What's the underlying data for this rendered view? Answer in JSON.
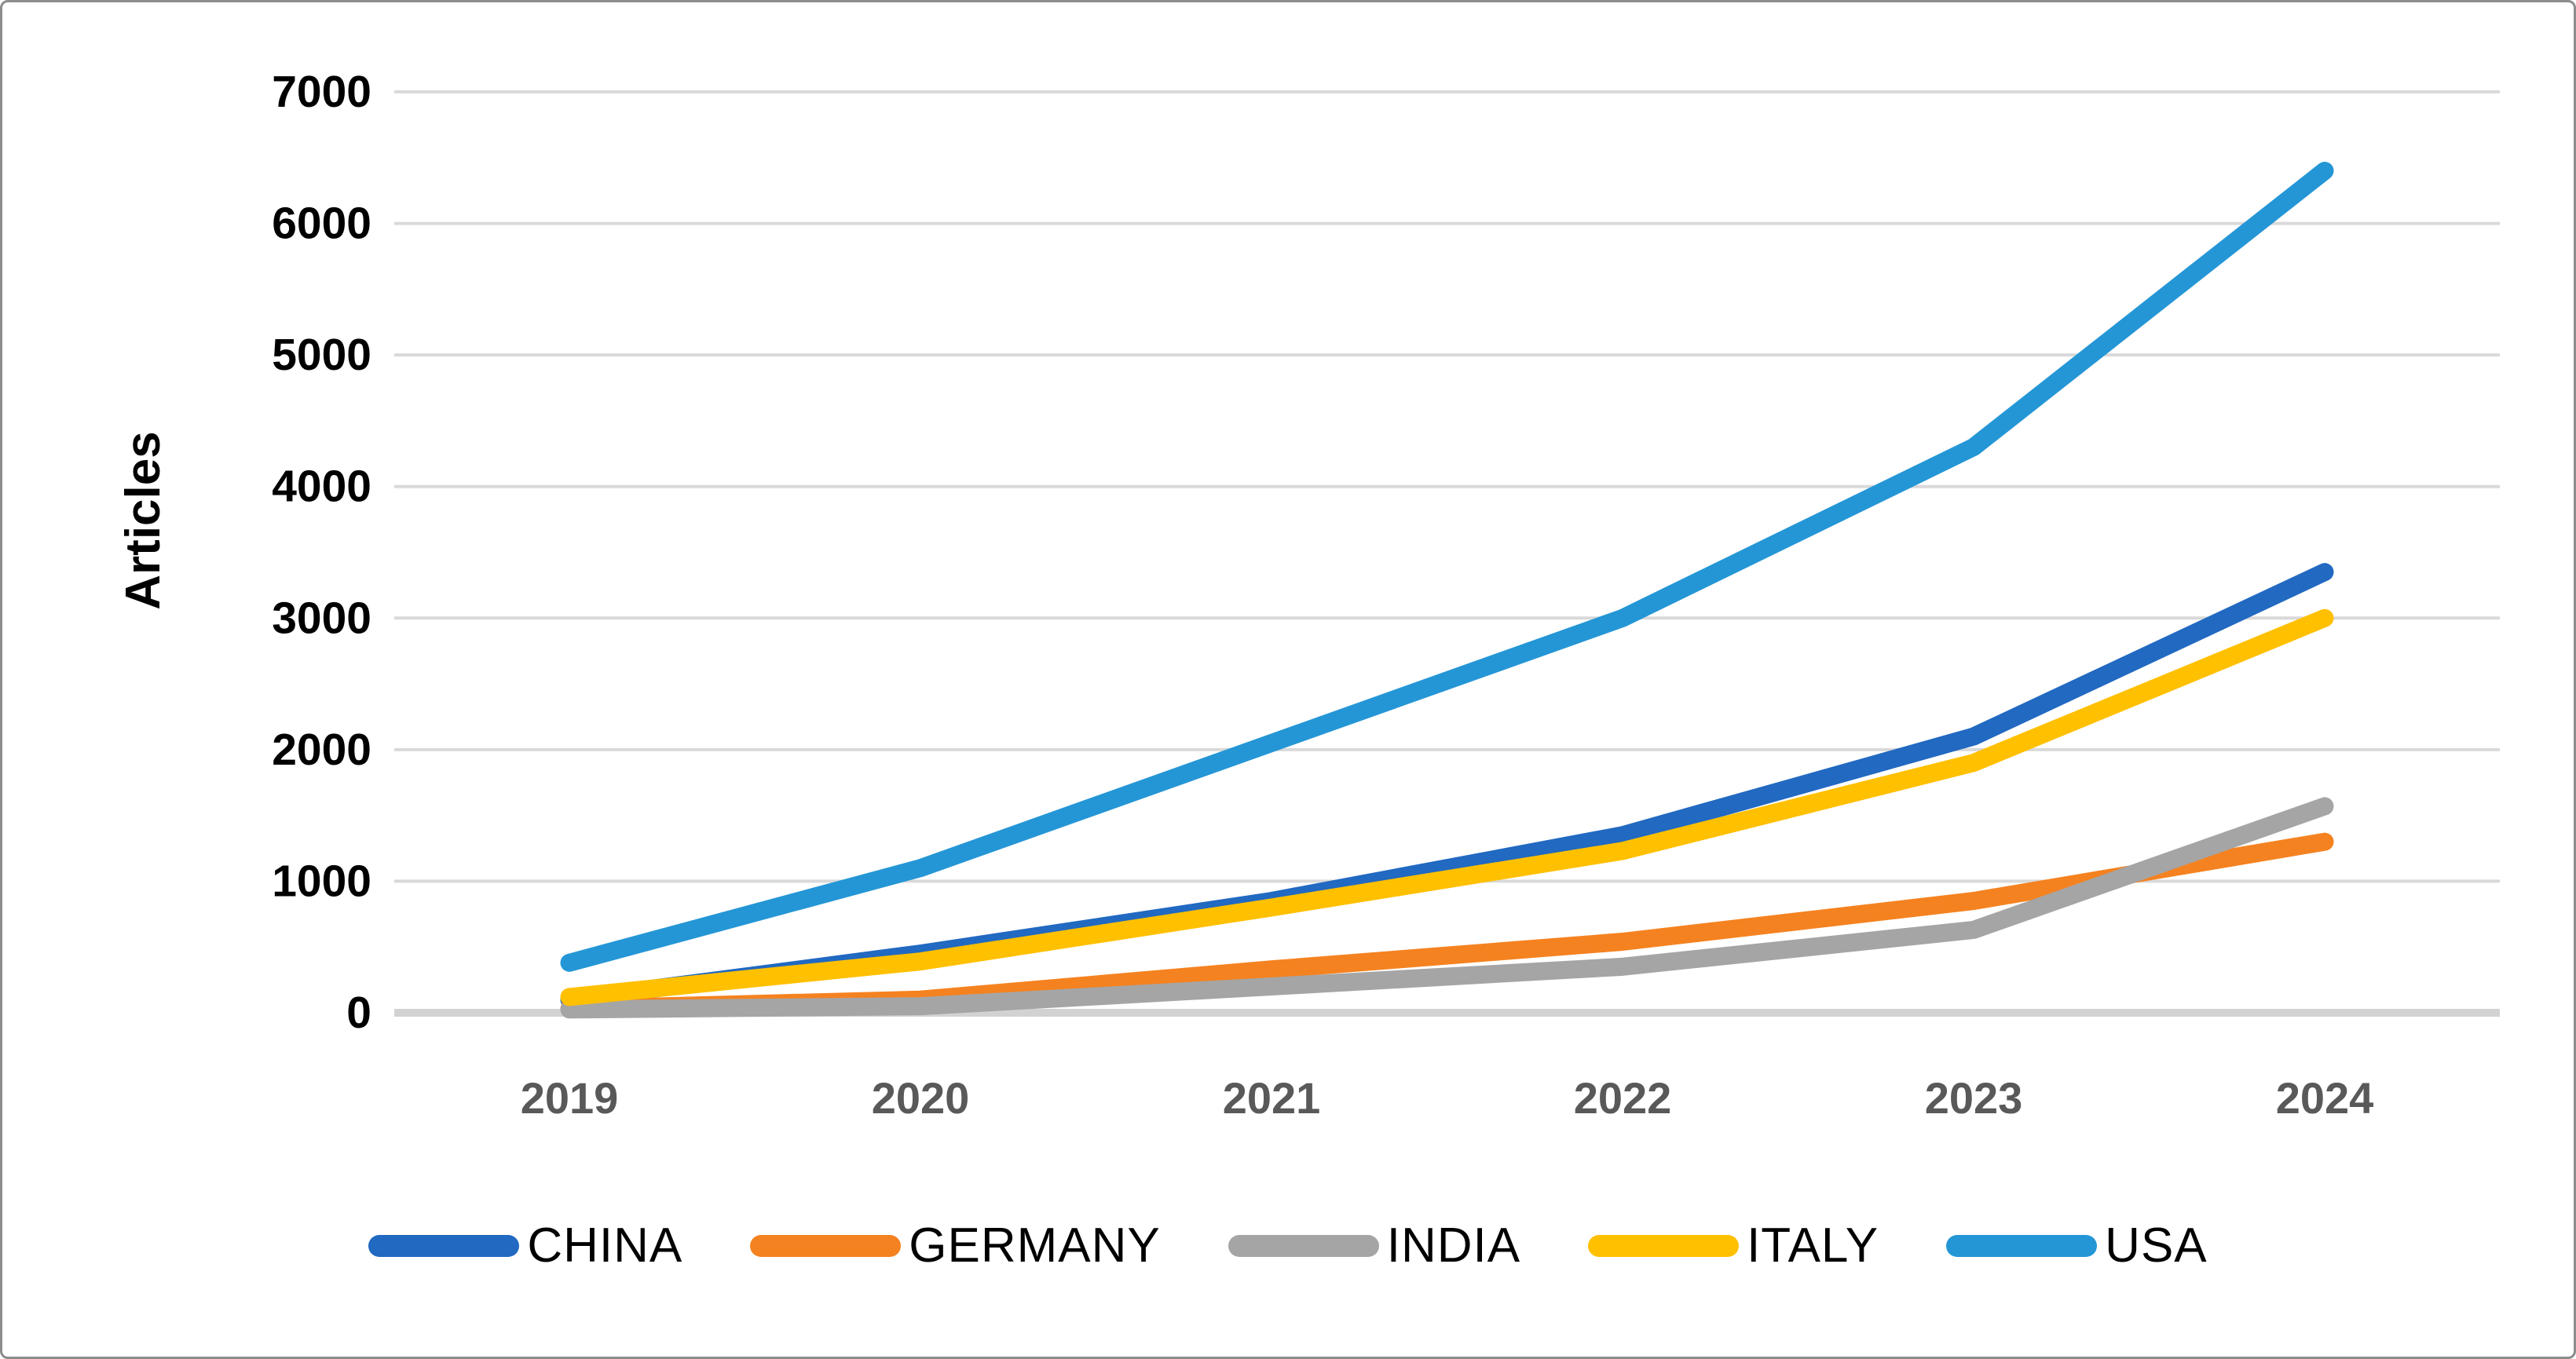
{
  "chart_data": {
    "type": "line",
    "title": "",
    "xlabel": "",
    "ylabel": "Articles",
    "categories": [
      "2019",
      "2020",
      "2021",
      "2022",
      "2023",
      "2024"
    ],
    "y_ticks": [
      0,
      1000,
      2000,
      3000,
      4000,
      5000,
      6000,
      7000
    ],
    "ylim": [
      0,
      7000
    ],
    "grid": "horizontal",
    "legend_position": "bottom",
    "series": [
      {
        "name": "CHINA",
        "color": "#2169C1",
        "values": [
          100,
          450,
          850,
          1350,
          2100,
          3350
        ]
      },
      {
        "name": "GERMANY",
        "color": "#F58220",
        "values": [
          30,
          100,
          330,
          540,
          850,
          1300
        ]
      },
      {
        "name": "INDIA",
        "color": "#A5A5A5",
        "values": [
          25,
          50,
          200,
          350,
          630,
          1570
        ]
      },
      {
        "name": "ITALY",
        "color": "#FFC000",
        "values": [
          120,
          390,
          800,
          1230,
          1900,
          3000
        ]
      },
      {
        "name": "USA",
        "color": "#2496D6",
        "values": [
          380,
          1100,
          2050,
          3000,
          4300,
          6400
        ]
      }
    ]
  },
  "style": {
    "background": "#FFFFFF",
    "border_color": "#8C8C8C",
    "grid_color": "#D9D9D9",
    "zero_line_color": "#D2D2D2",
    "y_tick_color": "#000000",
    "x_tick_color": "#595959"
  }
}
